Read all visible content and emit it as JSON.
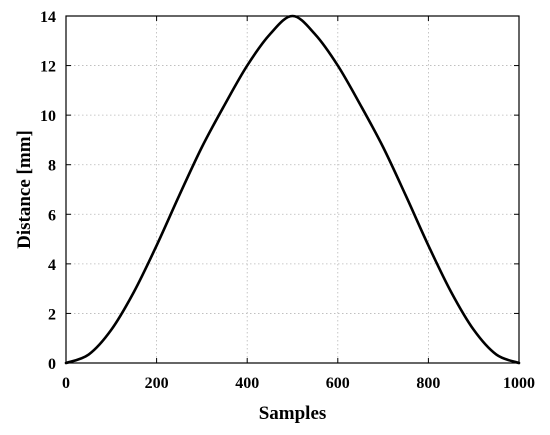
{
  "chart_data": {
    "type": "line",
    "title": "",
    "xlabel": "Samples",
    "ylabel": "Distance [mm]",
    "xlim": [
      0,
      1000
    ],
    "ylim": [
      0,
      14
    ],
    "xticks": [
      0,
      200,
      400,
      600,
      800,
      1000
    ],
    "yticks": [
      0,
      2,
      4,
      6,
      8,
      10,
      12,
      14
    ],
    "xtick_labels": [
      "0",
      "200",
      "400",
      "600",
      "800",
      "1000"
    ],
    "ytick_labels": [
      "0",
      "2",
      "4",
      "6",
      "8",
      "10",
      "12",
      "14"
    ],
    "grid": true,
    "legend": "none",
    "series": [
      {
        "color": "#000000",
        "x": [
          0,
          50,
          100,
          150,
          200,
          250,
          300,
          350,
          400,
          450,
          500,
          550,
          600,
          650,
          700,
          750,
          800,
          850,
          900,
          950,
          1000
        ],
        "y": [
          0,
          0.34,
          1.34,
          2.87,
          4.74,
          6.76,
          8.71,
          10.41,
          12.0,
          13.26,
          14.0,
          13.26,
          12.0,
          10.41,
          8.71,
          6.76,
          4.74,
          2.87,
          1.34,
          0.34,
          0
        ]
      }
    ]
  }
}
